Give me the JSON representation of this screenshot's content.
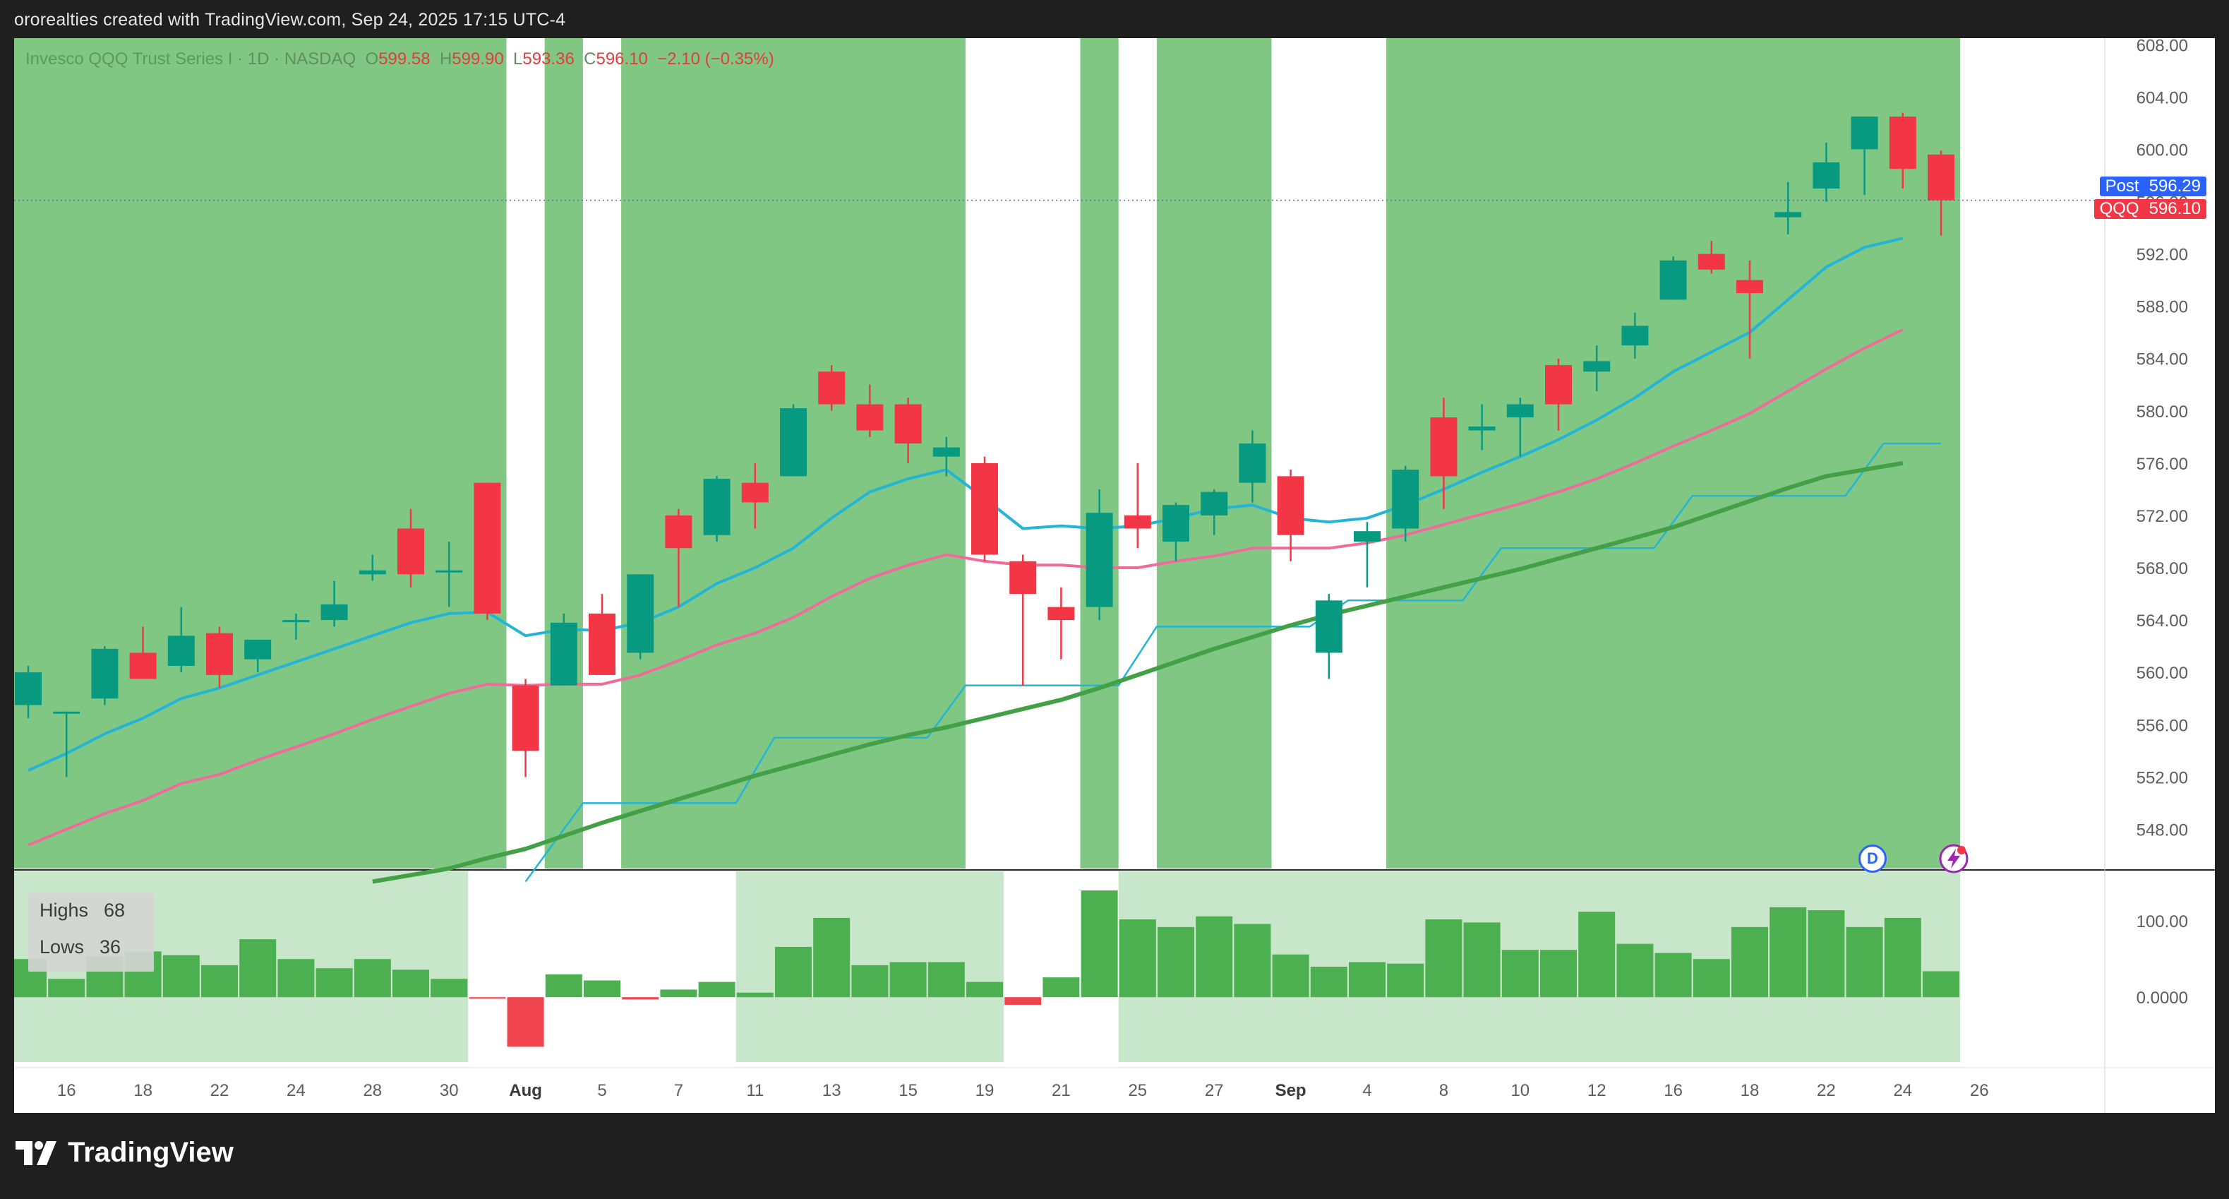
{
  "header": {
    "caption": "ororealties created with TradingView.com, Sep 24, 2025 17:15 UTC-4"
  },
  "legend": {
    "symbol": "Invesco QQQ Trust Series I",
    "interval": "1D",
    "exchange": "NASDAQ",
    "open_label": "O",
    "open": "599.58",
    "high_label": "H",
    "high": "599.90",
    "low_label": "L",
    "low": "593.36",
    "close_label": "C",
    "close": "596.10",
    "change": "−2.10 (−0.35%)"
  },
  "price_tags": {
    "post_label": "Post",
    "post_value": "596.29",
    "qqq_label": "QQQ",
    "qqq_value": "596.10"
  },
  "indicator_legend": {
    "highs_label": "Highs",
    "highs_value": "68",
    "lows_label": "Lows",
    "lows_value": "36"
  },
  "badges": {
    "dividend_label": "D"
  },
  "footer": {
    "brand": "TradingView"
  },
  "colors": {
    "up": "#089981",
    "down": "#f23645",
    "bg_green": "#81c784",
    "bg_light_green": "#c8e6c9",
    "ema_fast": "#22b5d6",
    "ema_mid": "#ef6b9a",
    "sma_slow": "#43a047",
    "step_line": "#22b5d6",
    "hist_up": "#4caf50",
    "hist_down": "#f0444f"
  },
  "chart_data": {
    "type": "candlestick",
    "price_axis": {
      "ticks": [
        "608.00",
        "604.00",
        "600.00",
        "596.00",
        "592.00",
        "588.00",
        "584.00",
        "580.00",
        "576.00",
        "572.00",
        "568.00",
        "564.00",
        "560.00",
        "556.00",
        "552.00",
        "548.00"
      ],
      "range": [
        545.0,
        608.5
      ]
    },
    "x_axis_labels": [
      {
        "i": 1,
        "t": "16"
      },
      {
        "i": 3,
        "t": "18"
      },
      {
        "i": 5,
        "t": "22"
      },
      {
        "i": 7,
        "t": "24"
      },
      {
        "i": 9,
        "t": "28"
      },
      {
        "i": 11,
        "t": "30"
      },
      {
        "i": 13,
        "t": "Aug"
      },
      {
        "i": 15,
        "t": "5"
      },
      {
        "i": 17,
        "t": "7"
      },
      {
        "i": 19,
        "t": "11"
      },
      {
        "i": 21,
        "t": "13"
      },
      {
        "i": 23,
        "t": "15"
      },
      {
        "i": 25,
        "t": "19"
      },
      {
        "i": 27,
        "t": "21"
      },
      {
        "i": 29,
        "t": "25"
      },
      {
        "i": 31,
        "t": "27"
      },
      {
        "i": 33,
        "t": "Sep"
      },
      {
        "i": 35,
        "t": "4"
      },
      {
        "i": 37,
        "t": "8"
      },
      {
        "i": 39,
        "t": "10"
      },
      {
        "i": 41,
        "t": "12"
      },
      {
        "i": 43,
        "t": "16"
      },
      {
        "i": 45,
        "t": "18"
      },
      {
        "i": 47,
        "t": "22"
      },
      {
        "i": 49,
        "t": "24"
      },
      {
        "i": 51,
        "t": "26"
      }
    ],
    "candles": [
      [
        557.5,
        560.5,
        556.5,
        560.0
      ],
      [
        557.0,
        557.0,
        552.0,
        557.0
      ],
      [
        558.0,
        562.0,
        557.5,
        561.8
      ],
      [
        561.5,
        563.5,
        560.0,
        559.5
      ],
      [
        560.5,
        565.0,
        560.0,
        562.8
      ],
      [
        563.0,
        563.5,
        558.8,
        559.8
      ],
      [
        561.0,
        562.5,
        560.0,
        562.5
      ],
      [
        564.0,
        564.5,
        562.5,
        564.0
      ],
      [
        564.0,
        567.0,
        563.5,
        565.2
      ],
      [
        567.5,
        569.0,
        567.0,
        567.8
      ],
      [
        571.0,
        572.5,
        566.5,
        567.5
      ],
      [
        567.8,
        570.0,
        565.0,
        567.8
      ],
      [
        574.5,
        574.5,
        564.0,
        564.5
      ],
      [
        559.0,
        559.5,
        552.0,
        554.0
      ],
      [
        559.0,
        564.5,
        559.0,
        563.8
      ],
      [
        564.5,
        566.0,
        559.8,
        559.8
      ],
      [
        561.5,
        567.5,
        561.0,
        567.5
      ],
      [
        572.0,
        572.5,
        565.0,
        569.5
      ],
      [
        570.5,
        575.0,
        570.0,
        574.8
      ],
      [
        574.5,
        576.0,
        571.0,
        573.0
      ],
      [
        575.0,
        580.5,
        575.0,
        580.2
      ],
      [
        583.0,
        583.5,
        580.0,
        580.5
      ],
      [
        580.5,
        582.0,
        578.0,
        578.5
      ],
      [
        580.5,
        581.0,
        576.0,
        577.5
      ],
      [
        576.5,
        578.0,
        575.0,
        577.2
      ],
      [
        576.0,
        576.5,
        568.5,
        569.0
      ],
      [
        568.5,
        569.0,
        559.0,
        566.0
      ],
      [
        565.0,
        566.5,
        561.0,
        564.0
      ],
      [
        565.0,
        574.0,
        564.0,
        572.2
      ],
      [
        572.0,
        576.0,
        569.5,
        571.0
      ],
      [
        570.0,
        573.0,
        568.5,
        572.8
      ],
      [
        572.0,
        574.0,
        570.5,
        573.8
      ],
      [
        574.5,
        578.5,
        573.0,
        577.5
      ],
      [
        575.0,
        575.5,
        568.5,
        570.5
      ],
      [
        561.5,
        566.0,
        559.5,
        565.5
      ],
      [
        570.0,
        571.5,
        566.5,
        570.8
      ],
      [
        571.0,
        575.8,
        570.0,
        575.5
      ],
      [
        579.5,
        581.0,
        572.5,
        575.0
      ],
      [
        578.5,
        580.5,
        577.0,
        578.8
      ],
      [
        579.5,
        581.0,
        576.5,
        580.5
      ],
      [
        583.5,
        584.0,
        578.5,
        580.5
      ],
      [
        583.0,
        585.0,
        581.5,
        583.8
      ],
      [
        585.0,
        587.5,
        584.0,
        586.5
      ],
      [
        588.5,
        591.8,
        588.5,
        591.5
      ],
      [
        592.0,
        593.0,
        590.5,
        590.8
      ],
      [
        590.0,
        591.5,
        584.0,
        589.0
      ],
      [
        594.8,
        597.5,
        593.5,
        595.2
      ],
      [
        597.0,
        600.5,
        596.0,
        599.0
      ],
      [
        600.0,
        602.5,
        596.5,
        602.5
      ],
      [
        602.5,
        602.8,
        597.0,
        598.5
      ],
      [
        599.6,
        599.9,
        593.4,
        596.1
      ]
    ],
    "ema_fast": [
      552.5,
      553.8,
      555.3,
      556.5,
      558.0,
      558.8,
      559.8,
      560.8,
      561.8,
      562.8,
      563.8,
      564.5,
      564.6,
      562.8,
      563.3,
      563.2,
      563.8,
      565.0,
      566.8,
      568.0,
      569.5,
      571.8,
      573.8,
      574.8,
      575.5,
      573.3,
      571.0,
      571.2,
      571.0,
      571.2,
      571.8,
      572.5,
      572.8,
      571.8,
      571.5,
      571.8,
      572.8,
      574.0,
      575.3,
      576.5,
      577.8,
      579.3,
      581.0,
      583.0,
      584.5,
      586.0,
      588.5,
      591.0,
      592.5,
      593.2
    ],
    "ema_mid": [
      546.8,
      548.0,
      549.2,
      550.2,
      551.5,
      552.2,
      553.3,
      554.3,
      555.3,
      556.4,
      557.4,
      558.4,
      559.1,
      559.0,
      559.1,
      559.1,
      559.8,
      560.9,
      562.1,
      563.0,
      564.2,
      565.8,
      567.2,
      568.2,
      569.0,
      568.5,
      568.2,
      568.2,
      568.0,
      568.0,
      568.5,
      568.9,
      569.5,
      569.5,
      569.5,
      569.9,
      570.5,
      571.3,
      572.1,
      572.9,
      573.8,
      574.8,
      576.0,
      577.3,
      578.5,
      579.8,
      581.5,
      583.2,
      584.8,
      586.2
    ],
    "sma_slow_start": 9,
    "sma_slow": [
      544.0,
      544.5,
      545.0,
      545.8,
      546.5,
      547.5,
      548.5,
      549.4,
      550.3,
      551.2,
      552.1,
      552.9,
      553.7,
      554.5,
      555.2,
      555.8,
      556.5,
      557.2,
      557.9,
      558.8,
      559.8,
      560.8,
      561.8,
      562.7,
      563.6,
      564.4,
      565.1,
      565.8,
      566.5,
      567.2,
      567.9,
      568.7,
      569.5,
      570.3,
      571.1,
      572.1,
      573.1,
      574.1,
      575.0,
      575.5,
      576.0
    ],
    "step_line": [
      [
        13,
        544.0
      ],
      [
        14.5,
        550.0
      ],
      [
        18.5,
        550.0
      ],
      [
        19.5,
        555.0
      ],
      [
        23.5,
        555.0
      ],
      [
        24.5,
        559.0
      ],
      [
        28.5,
        559.0
      ],
      [
        29.5,
        563.5
      ],
      [
        33.5,
        563.5
      ],
      [
        34.5,
        565.5
      ],
      [
        37.5,
        565.5
      ],
      [
        38.5,
        569.5
      ],
      [
        42.5,
        569.5
      ],
      [
        43.5,
        573.5
      ],
      [
        47.5,
        573.5
      ],
      [
        48.5,
        577.5
      ],
      [
        50,
        577.5
      ]
    ],
    "bg_white_columns": [
      [
        12.5,
        13.5
      ],
      [
        14.5,
        15.5
      ],
      [
        24.5,
        27.5
      ],
      [
        28.5,
        29.5
      ],
      [
        32.5,
        35.5
      ],
      [
        50.5,
        56.0
      ]
    ],
    "indicator": {
      "axis_ticks": [
        "100.00",
        "0.0000"
      ],
      "range": [
        -85,
        165
      ],
      "values": [
        50,
        24,
        54,
        60,
        55,
        42,
        76,
        50,
        38,
        50,
        36,
        24,
        -2,
        -65,
        30,
        22,
        -3,
        10,
        20,
        6,
        66,
        104,
        42,
        46,
        46,
        20,
        -10,
        26,
        140,
        102,
        92,
        106,
        96,
        56,
        40,
        46,
        44,
        102,
        98,
        62,
        62,
        112,
        70,
        58,
        50,
        92,
        118,
        114,
        92,
        104,
        34
      ],
      "light_bands": [
        [
          -0.5,
          11.5
        ],
        [
          18.5,
          25.5
        ],
        [
          28.5,
          50.5
        ]
      ]
    }
  }
}
